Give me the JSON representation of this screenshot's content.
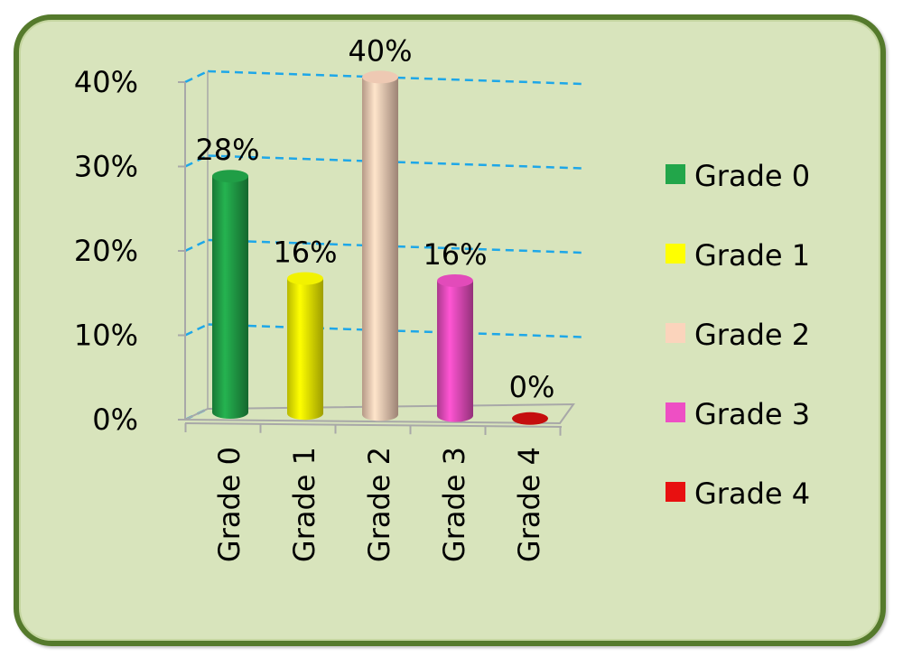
{
  "chart_data": {
    "type": "bar",
    "style": "3d-cylinder",
    "categories": [
      "Grade 0",
      "Grade 1",
      "Grade 2",
      "Grade 3",
      "Grade 4"
    ],
    "values": [
      28,
      16,
      40,
      16,
      0
    ],
    "value_labels": [
      "28%",
      "16%",
      "40%",
      "16%",
      "0%"
    ],
    "colors": [
      "#22a64a",
      "#ffff00",
      "#fbd4bc",
      "#ee4fc4",
      "#e81010"
    ],
    "ylim": [
      0,
      40
    ],
    "yticks": [
      0,
      10,
      20,
      30,
      40
    ],
    "ytick_labels": [
      "0%",
      "10%",
      "20%",
      "30%",
      "40%"
    ],
    "grid": true,
    "grid_color": "#1ea7e8",
    "legend_position": "right",
    "legend": [
      {
        "name": "Grade 0",
        "color": "#22a64a"
      },
      {
        "name": "Grade 1",
        "color": "#ffff00"
      },
      {
        "name": "Grade 2",
        "color": "#fbd4bc"
      },
      {
        "name": "Grade 3",
        "color": "#ee4fc4"
      },
      {
        "name": "Grade 4",
        "color": "#e81010"
      }
    ],
    "background_color": "#d8e4bc",
    "border_color": "#557a2c"
  }
}
